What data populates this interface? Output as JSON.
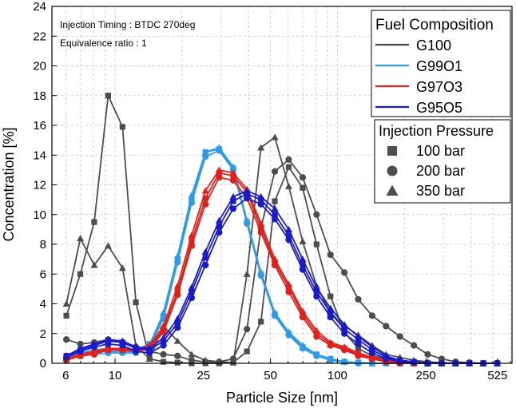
{
  "chart_data": {
    "type": "line",
    "xlabel": "Particle Size [nm]",
    "ylabel": "Concentration [%]",
    "xscale": "log",
    "xlim": [
      5.2,
      610
    ],
    "ylim": [
      0,
      24
    ],
    "x_ticks": [
      6,
      10,
      25,
      50,
      100,
      250,
      525
    ],
    "y_ticks": [
      0,
      2,
      4,
      6,
      8,
      10,
      12,
      14,
      16,
      18,
      20,
      22,
      24
    ],
    "grid": true,
    "annotations": [
      "Injection Timing : BTDC 270deg",
      "Equivalence ratio : 1"
    ],
    "legend_fuel": {
      "title": "Fuel Composition",
      "entries": [
        {
          "name": "G100",
          "color": "#4d4d4d"
        },
        {
          "name": "G99O1",
          "color": "#2f9be8"
        },
        {
          "name": "G97O3",
          "color": "#e0201b"
        },
        {
          "name": "G95O5",
          "color": "#1a1ac8"
        }
      ]
    },
    "legend_pressure": {
      "title": "Injection Pressure",
      "entries": [
        {
          "name": "100 bar",
          "marker": "square"
        },
        {
          "name": "200 bar",
          "marker": "circle"
        },
        {
          "name": "350 bar",
          "marker": "triangle"
        }
      ]
    },
    "x": [
      6.04,
      6.98,
      8.06,
      9.31,
      10.8,
      12.4,
      14.3,
      16.5,
      19.1,
      22.1,
      25.5,
      29.4,
      34.0,
      39.2,
      45.3,
      52.3,
      60.4,
      69.8,
      80.6,
      93.1,
      107.5,
      124.1,
      143.3,
      165.5,
      191.1,
      220.7,
      254.8,
      294.3,
      339.8,
      392.4,
      453.2,
      523.3
    ],
    "series": [
      {
        "fuel": "G100",
        "pressure": "100 bar",
        "color": "#4d4d4d",
        "marker": "square",
        "values": [
          3.2,
          6.0,
          9.5,
          18.0,
          15.9,
          4.1,
          0.3,
          0.1,
          0.05,
          0,
          0,
          0,
          0.05,
          0.8,
          2.8,
          10.9,
          13.2,
          11.8,
          8.0,
          4.5,
          2.1,
          1.0,
          0.5,
          0.3,
          0.1,
          0.05,
          0,
          0,
          0,
          0,
          0,
          0
        ]
      },
      {
        "fuel": "G100",
        "pressure": "200 bar",
        "color": "#4d4d4d",
        "marker": "circle",
        "values": [
          1.6,
          1.3,
          1.4,
          1.6,
          1.4,
          1.1,
          0.8,
          0.6,
          0.5,
          0.2,
          0.1,
          0.1,
          0.3,
          2.3,
          9.1,
          12.9,
          13.7,
          12.5,
          10.0,
          7.3,
          6.1,
          4.3,
          3.2,
          2.5,
          1.8,
          1.2,
          0.6,
          0.3,
          0.1,
          0.05,
          0,
          0
        ]
      },
      {
        "fuel": "G100",
        "pressure": "350 bar",
        "color": "#4d4d4d",
        "marker": "triangle",
        "values": [
          4.0,
          8.4,
          6.6,
          7.9,
          6.4,
          1.2,
          0.3,
          2.5,
          1.5,
          0.6,
          0.2,
          0.1,
          0.05,
          6.0,
          14.5,
          15.2,
          11.9,
          8.2,
          5.2,
          3.4,
          2.5,
          1.9,
          1.2,
          0.6,
          0.4,
          0.2,
          0.1,
          0.05,
          0,
          0,
          0,
          0
        ]
      },
      {
        "fuel": "G99O1",
        "pressure": "100 bar",
        "color": "#2f9be8",
        "marker": "square",
        "values": [
          0.4,
          0.7,
          0.9,
          1.0,
          1.0,
          0.9,
          1.3,
          3.2,
          7.0,
          11.0,
          14.2,
          14.4,
          13.1,
          9.5,
          6.0,
          3.3,
          2.0,
          1.1,
          0.6,
          0.3,
          0.1,
          0.05,
          0,
          0,
          0,
          0,
          0,
          0,
          0,
          0,
          0,
          0
        ]
      },
      {
        "fuel": "G99O1",
        "pressure": "200 bar",
        "color": "#2f9be8",
        "marker": "circle",
        "values": [
          0.3,
          0.5,
          0.6,
          0.7,
          0.7,
          0.7,
          1.1,
          3.0,
          6.8,
          10.8,
          13.9,
          14.3,
          13.0,
          9.4,
          5.9,
          3.2,
          1.9,
          1.0,
          0.5,
          0.2,
          0.1,
          0,
          0,
          0,
          0,
          0,
          0,
          0,
          0,
          0,
          0,
          0
        ]
      },
      {
        "fuel": "G99O1",
        "pressure": "350 bar",
        "color": "#2f9be8",
        "marker": "triangle",
        "values": [
          0.4,
          0.6,
          0.8,
          0.8,
          0.8,
          0.8,
          1.2,
          3.4,
          7.2,
          11.3,
          14.2,
          14.5,
          13.2,
          9.6,
          6.1,
          3.4,
          2.1,
          1.2,
          0.6,
          0.3,
          0.1,
          0.05,
          0,
          0,
          0,
          0,
          0,
          0,
          0,
          0,
          0,
          0
        ]
      },
      {
        "fuel": "G97O3",
        "pressure": "100 bar",
        "color": "#e0201b",
        "marker": "square",
        "values": [
          0.3,
          0.5,
          0.7,
          0.9,
          0.9,
          0.9,
          1.1,
          2.3,
          4.8,
          8.2,
          11.1,
          12.8,
          12.6,
          11.5,
          9.1,
          6.8,
          5.1,
          3.3,
          2.0,
          1.3,
          1.0,
          0.6,
          0.3,
          0.1,
          0.05,
          0,
          0,
          0,
          0,
          0,
          0,
          0
        ]
      },
      {
        "fuel": "G97O3",
        "pressure": "200 bar",
        "color": "#e0201b",
        "marker": "circle",
        "values": [
          0.2,
          0.5,
          0.6,
          0.9,
          0.9,
          0.8,
          1.0,
          2.1,
          4.6,
          7.9,
          10.7,
          12.5,
          12.3,
          11.1,
          8.8,
          6.6,
          4.8,
          3.1,
          1.8,
          1.2,
          0.9,
          0.5,
          0.3,
          0.1,
          0,
          0,
          0,
          0,
          0,
          0,
          0,
          0
        ]
      },
      {
        "fuel": "G97O3",
        "pressure": "350 bar",
        "color": "#e0201b",
        "marker": "triangle",
        "values": [
          0.3,
          0.6,
          0.8,
          1.0,
          1.0,
          0.9,
          1.2,
          2.5,
          5.2,
          8.6,
          11.6,
          13.0,
          12.8,
          11.7,
          9.4,
          7.0,
          5.3,
          3.5,
          2.2,
          1.4,
          1.1,
          0.7,
          0.4,
          0.2,
          0.05,
          0,
          0,
          0,
          0,
          0,
          0,
          0
        ]
      },
      {
        "fuel": "G95O5",
        "pressure": "100 bar",
        "color": "#1a1ac8",
        "marker": "square",
        "values": [
          0.5,
          0.9,
          1.2,
          1.5,
          1.4,
          1.0,
          0.9,
          1.5,
          2.7,
          4.8,
          7.1,
          9.2,
          10.9,
          11.4,
          11.0,
          10.0,
          8.6,
          6.6,
          4.8,
          3.4,
          2.3,
          1.6,
          0.9,
          0.4,
          0.2,
          0.1,
          0,
          0,
          0,
          0,
          0,
          0
        ]
      },
      {
        "fuel": "G95O5",
        "pressure": "200 bar",
        "color": "#1a1ac8",
        "marker": "circle",
        "values": [
          0.4,
          0.8,
          1.1,
          1.3,
          1.2,
          0.8,
          0.7,
          1.2,
          2.4,
          4.4,
          6.6,
          8.8,
          10.4,
          11.1,
          10.7,
          9.7,
          8.3,
          6.3,
          4.5,
          3.1,
          2.0,
          1.3,
          0.7,
          0.3,
          0.1,
          0.05,
          0,
          0,
          0,
          0,
          0,
          0
        ]
      },
      {
        "fuel": "G95O5",
        "pressure": "350 bar",
        "color": "#1a1ac8",
        "marker": "triangle",
        "values": [
          0.5,
          1.0,
          1.3,
          1.6,
          1.5,
          1.1,
          1.0,
          1.7,
          3.0,
          5.1,
          7.5,
          9.6,
          11.2,
          11.6,
          11.2,
          10.4,
          9.0,
          7.0,
          5.1,
          3.7,
          2.6,
          1.8,
          1.1,
          0.5,
          0.2,
          0.1,
          0,
          0,
          0,
          0,
          0,
          0
        ]
      }
    ]
  }
}
